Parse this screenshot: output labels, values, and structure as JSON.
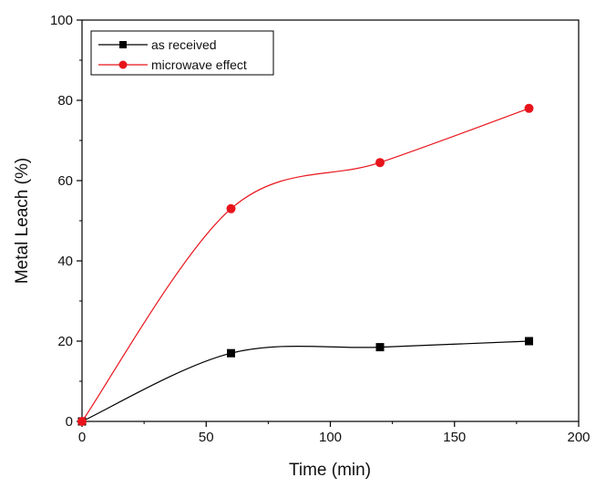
{
  "chart_data": {
    "type": "line",
    "title": "",
    "xlabel": "Time (min)",
    "ylabel": "Metal Leach (%)",
    "xlim": [
      0,
      200
    ],
    "ylim": [
      0,
      100
    ],
    "xticks": [
      0,
      50,
      100,
      150,
      200
    ],
    "yticks": [
      0,
      20,
      40,
      60,
      80,
      100
    ],
    "grid": false,
    "legend_position": "top-left",
    "x": [
      0,
      60,
      120,
      180
    ],
    "series": [
      {
        "name": "as received",
        "values": [
          0,
          17,
          18.5,
          20
        ],
        "color": "#000000",
        "marker": "square",
        "smooth": true
      },
      {
        "name": "microwave effect",
        "values": [
          0,
          53,
          64.5,
          78
        ],
        "color": "#e8141b",
        "marker": "circle",
        "smooth": true
      }
    ]
  }
}
